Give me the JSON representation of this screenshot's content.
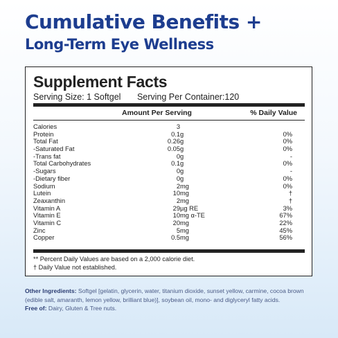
{
  "heading": {
    "line1": "Cumulative Benefits +",
    "line2": "Long-Term Eye Wellness"
  },
  "label": {
    "title": "Supplement Facts",
    "serving_size": "Serving Size: 1 Softgel",
    "servings_per_container": "Serving Per Container:120",
    "col_amount": "Amount Per Serving",
    "col_dv": "% Daily Value",
    "rows": [
      {
        "name": "Calories",
        "amount": "3",
        "unit": "",
        "dv": ""
      },
      {
        "name": "Protein",
        "amount": "0.1",
        "unit": "g",
        "dv": "0%"
      },
      {
        "name": "Total Fat",
        "amount": "0.26",
        "unit": "g",
        "dv": "0%"
      },
      {
        "name": "-Saturated Fat",
        "amount": "0.05",
        "unit": "g",
        "dv": "0%"
      },
      {
        "name": "-Trans fat",
        "amount": "0",
        "unit": "g",
        "dv": "-"
      },
      {
        "name": "Total Carbohydrates",
        "amount": "0.1",
        "unit": "g",
        "dv": "0%"
      },
      {
        "name": "-Sugars",
        "amount": "0",
        "unit": "g",
        "dv": "-"
      },
      {
        "name": "-Dietary fiber",
        "amount": "0",
        "unit": "g",
        "dv": "0%"
      },
      {
        "name": "Sodium",
        "amount": "2",
        "unit": "mg",
        "dv": "0%"
      },
      {
        "name": "Lutein",
        "amount": "10",
        "unit": "mg",
        "dv": "†"
      },
      {
        "name": "Zeaxanthin",
        "amount": "2",
        "unit": "mg",
        "dv": "†"
      },
      {
        "name": "Vitamin A",
        "amount": "29",
        "unit": "µg RE",
        "dv": "3%"
      },
      {
        "name": "Vitamin E",
        "amount": "10",
        "unit": "mg α-TE",
        "dv": "67%"
      },
      {
        "name": "Vitamin C",
        "amount": "20",
        "unit": "mg",
        "dv": "22%"
      },
      {
        "name": "Zinc",
        "amount": "5",
        "unit": "mg",
        "dv": "45%"
      },
      {
        "name": "Copper",
        "amount": "0.5",
        "unit": "mg",
        "dv": "56%"
      }
    ],
    "footnote_1": "** Percent Daily Values are based on a 2,000 calorie diet.",
    "footnote_2": "† Daily Value not established."
  },
  "ingredients": {
    "other_label": "Other Ingredients:",
    "other_text": " Softgel [gelatin, glycerin, water, titanium dioxide, sunset yellow, carmine, cocoa brown (edible salt, amaranth, lemon yellow, brilliant blue)], soybean oil, mono- and diglyceryl fatty acids.",
    "free_label": "Free of:",
    "free_text": " Dairy, Gluten & Tree nuts."
  }
}
